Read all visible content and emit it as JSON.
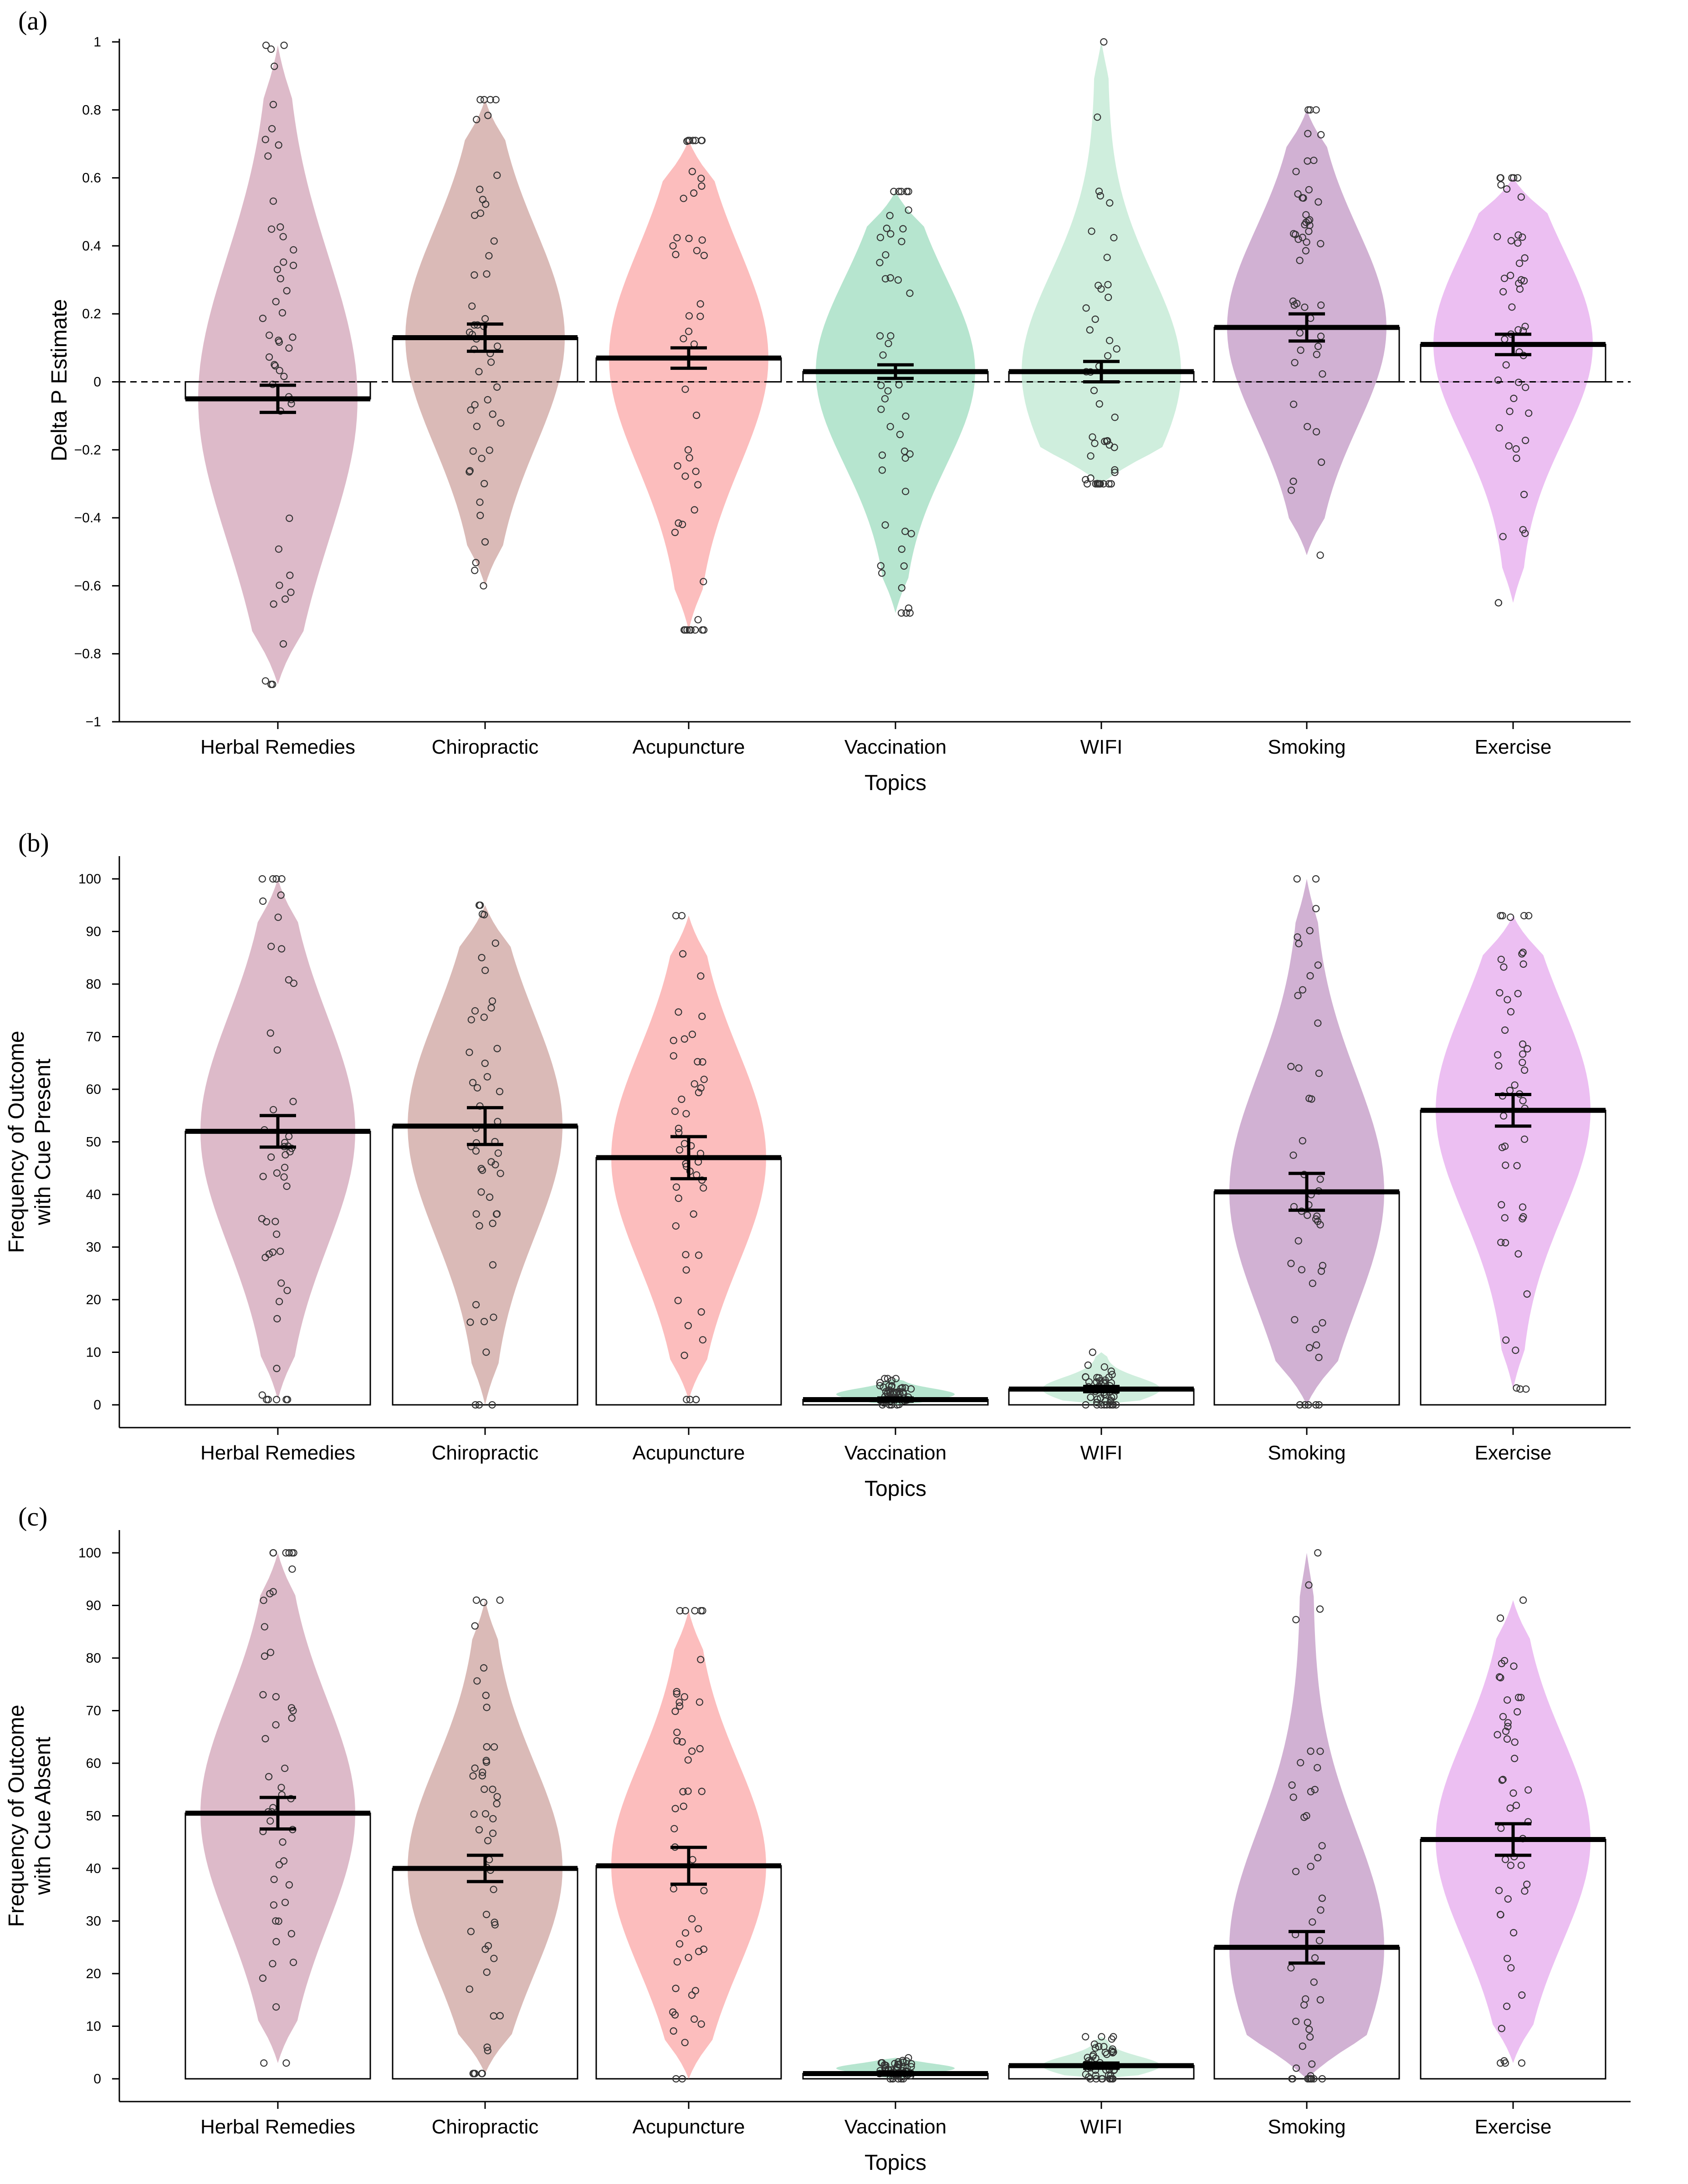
{
  "panels": [
    {
      "label": "(a)",
      "xlabel": "Topics",
      "ylabel": [
        "Delta P Estimate"
      ],
      "chart_data": {
        "type": "bar",
        "overlay": "violin + jittered points + error bars (mean ± SE)",
        "categories": [
          "Herbal Remedies",
          "Chiropractic",
          "Acupuncture",
          "Vaccination",
          "WIFI",
          "Smoking",
          "Exercise"
        ],
        "means": [
          -0.05,
          0.13,
          0.07,
          0.03,
          0.03,
          0.16,
          0.11
        ],
        "se": [
          0.04,
          0.04,
          0.03,
          0.02,
          0.03,
          0.04,
          0.03
        ],
        "ranges": [
          [
            -0.89,
            0.99
          ],
          [
            -0.6,
            0.83
          ],
          [
            -0.73,
            0.71
          ],
          [
            -0.68,
            0.56
          ],
          [
            -0.3,
            1.0
          ],
          [
            -0.51,
            0.8
          ],
          [
            -0.65,
            0.6
          ]
        ],
        "ylim": [
          -1,
          1
        ],
        "yticks": [
          1,
          0.8,
          0.6,
          0.4,
          0.2,
          0,
          -0.2,
          -0.4,
          -0.6,
          -0.8,
          -1
        ],
        "yticklabels": [
          "1",
          "0.8",
          "0.6",
          "0.4",
          "0.2",
          "0",
          "−0.2",
          "−0.4",
          "−0.6",
          "−0.8",
          "−1"
        ],
        "reference_line": 0,
        "colors": [
          "#d7aec0",
          "#d4aeaa",
          "#fbb1b1",
          "#a9e0c7",
          "#c7ebd7",
          "#c9a3cb",
          "#e9b4f0"
        ]
      }
    },
    {
      "label": "(b)",
      "xlabel": "Topics",
      "ylabel": [
        "Frequency of Outcome",
        "with Cue Present"
      ],
      "chart_data": {
        "type": "bar",
        "overlay": "violin + jittered points + error bars (mean ± SE)",
        "categories": [
          "Herbal Remedies",
          "Chiropractic",
          "Acupuncture",
          "Vaccination",
          "WIFI",
          "Smoking",
          "Exercise"
        ],
        "means": [
          52,
          53,
          47,
          1,
          3,
          40.5,
          56
        ],
        "se": [
          3,
          3.5,
          4,
          0.3,
          0.5,
          3.5,
          3
        ],
        "ranges": [
          [
            1,
            100
          ],
          [
            0,
            95
          ],
          [
            1,
            93
          ],
          [
            0,
            5
          ],
          [
            0,
            10
          ],
          [
            0,
            100
          ],
          [
            3,
            93
          ]
        ],
        "ylim": [
          0,
          100
        ],
        "yticks": [
          100,
          90,
          80,
          70,
          60,
          50,
          40,
          30,
          20,
          10,
          0
        ],
        "yticklabels": [
          "100",
          "90",
          "80",
          "70",
          "60",
          "50",
          "40",
          "30",
          "20",
          "10",
          "0"
        ],
        "colors": [
          "#d7aec0",
          "#d4aeaa",
          "#fbb1b1",
          "#a9e0c7",
          "#c7ebd7",
          "#c9a3cb",
          "#e9b4f0"
        ]
      }
    },
    {
      "label": "(c)",
      "xlabel": "Topics",
      "ylabel": [
        "Frequency of Outcome",
        "with Cue Absent"
      ],
      "chart_data": {
        "type": "bar",
        "overlay": "violin + jittered points + error bars (mean ± SE)",
        "categories": [
          "Herbal Remedies",
          "Chiropractic",
          "Acupuncture",
          "Vaccination",
          "WIFI",
          "Smoking",
          "Exercise"
        ],
        "means": [
          50.5,
          40,
          40.5,
          1,
          2.5,
          25,
          45.5
        ],
        "se": [
          3,
          2.5,
          3.5,
          0.3,
          0.5,
          3,
          3
        ],
        "ranges": [
          [
            3,
            100
          ],
          [
            1,
            91
          ],
          [
            0,
            89
          ],
          [
            0,
            4
          ],
          [
            0,
            8
          ],
          [
            0,
            100
          ],
          [
            3,
            91
          ]
        ],
        "ylim": [
          0,
          100
        ],
        "yticks": [
          100,
          90,
          80,
          70,
          60,
          50,
          40,
          30,
          20,
          10,
          0
        ],
        "yticklabels": [
          "100",
          "90",
          "80",
          "70",
          "60",
          "50",
          "40",
          "30",
          "20",
          "10",
          "0"
        ],
        "colors": [
          "#d7aec0",
          "#d4aeaa",
          "#fbb1b1",
          "#a9e0c7",
          "#c7ebd7",
          "#c9a3cb",
          "#e9b4f0"
        ]
      }
    }
  ]
}
